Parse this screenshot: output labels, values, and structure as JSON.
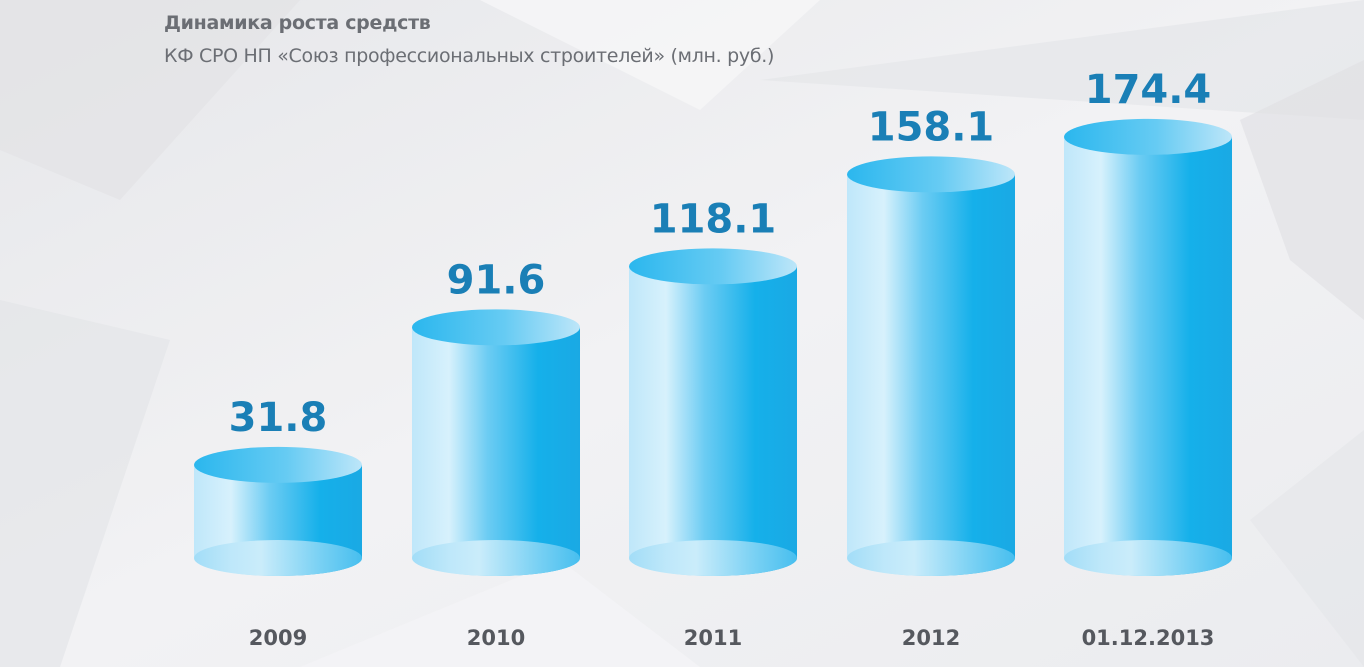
{
  "title": "Динамика роста средств",
  "subtitle": "КФ СРО НП «Союз профессиональных строителей» (млн. руб.)",
  "colors": {
    "bar": "#16b0ea",
    "bar_light": "#c9ecfb",
    "value_label": "#1a7fb6",
    "category_label": "#55585e",
    "background": "#eeeef0"
  },
  "chart_data": {
    "type": "bar",
    "style": "3d-cylinder",
    "categories": [
      "2009",
      "2010",
      "2011",
      "2012",
      "01.12.2013"
    ],
    "values": [
      31.8,
      91.6,
      118.1,
      158.1,
      174.4
    ],
    "value_labels": [
      "31.8",
      "91.6",
      "118.1",
      "158.1",
      "174.4"
    ],
    "title": "Динамика роста средств",
    "subtitle": "КФ СРО НП «Союз профессиональных строителей» (млн. руб.)",
    "xlabel": "",
    "ylabel": "",
    "grid": false,
    "legend": "none"
  }
}
